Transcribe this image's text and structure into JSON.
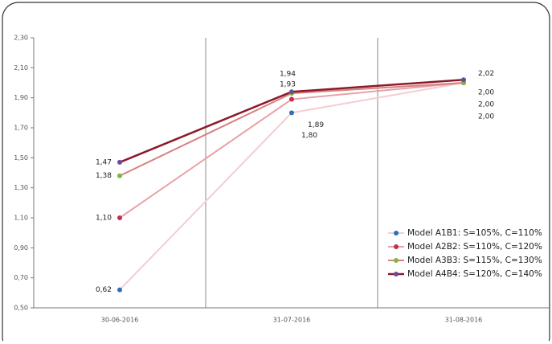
{
  "chart_data": {
    "type": "line",
    "categories": [
      "30-06-2016",
      "31-07-2016",
      "31-08-2016"
    ],
    "series": [
      {
        "name": "Model A1B1: S=105%, C=110%",
        "color": "#f4cdd0",
        "marker_color": "#2e6fb5",
        "values": [
          0.62,
          1.8,
          2.0
        ],
        "value_labels": [
          "0,62",
          "1,80",
          "2,00"
        ]
      },
      {
        "name": "Model A2B2: S=110%, C=120%",
        "color": "#e8a2a8",
        "marker_color": "#c0304a",
        "values": [
          1.1,
          1.89,
          2.0
        ],
        "value_labels": [
          "1,10",
          "1,89",
          "2,00"
        ]
      },
      {
        "name": "Model A3B3: S=115%, C=130%",
        "color": "#d98080",
        "marker_color": "#7cb842",
        "values": [
          1.38,
          1.93,
          2.0
        ],
        "value_labels": [
          "1,38",
          "1,93",
          "2,00"
        ]
      },
      {
        "name": "Model A4B4: S=120%, C=140%",
        "color": "#8b1a2b",
        "marker_color": "#6a4a9c",
        "values": [
          1.47,
          1.94,
          2.02
        ],
        "value_labels": [
          "1,47",
          "1,94",
          "2,02"
        ]
      }
    ],
    "ylim": [
      0.5,
      2.3
    ],
    "yticks": [
      {
        "value": 0.5,
        "label": "0,50"
      },
      {
        "value": 0.7,
        "label": "0,70"
      },
      {
        "value": 0.9,
        "label": "0,90"
      },
      {
        "value": 1.1,
        "label": "1,10"
      },
      {
        "value": 1.3,
        "label": "1,30"
      },
      {
        "value": 1.5,
        "label": "1,50"
      },
      {
        "value": 1.7,
        "label": "1,70"
      },
      {
        "value": 1.9,
        "label": "1,90"
      },
      {
        "value": 2.1,
        "label": "2,10"
      },
      {
        "value": 2.3,
        "label": "2,30"
      }
    ],
    "grid": false,
    "legend": "bottom-right"
  }
}
